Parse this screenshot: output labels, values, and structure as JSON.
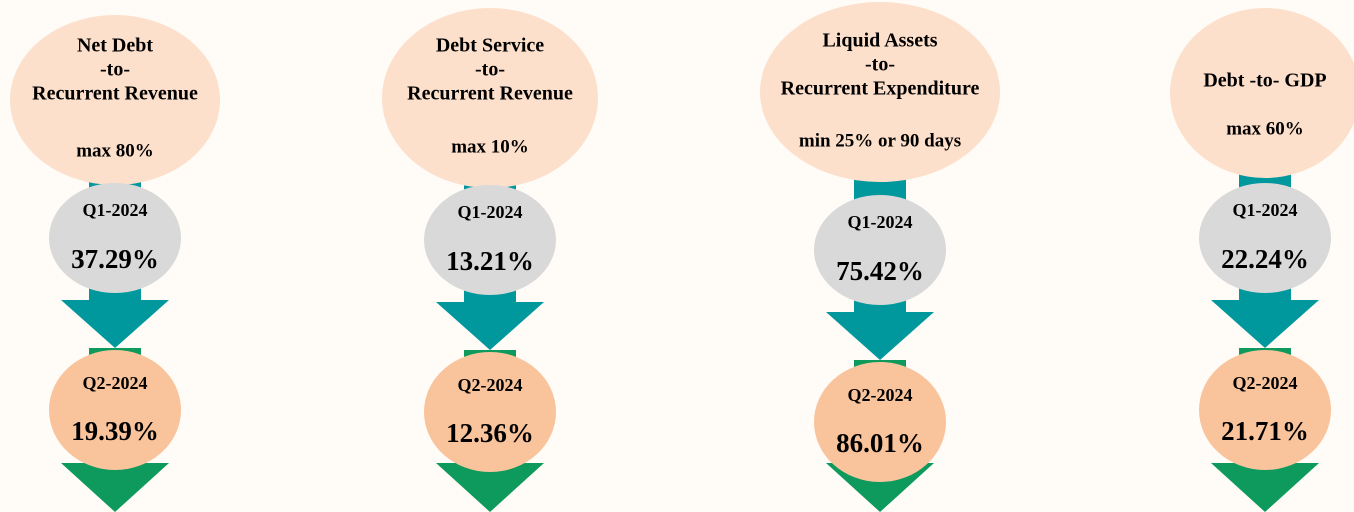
{
  "columns": [
    {
      "title": [
        "Net Debt",
        "-to-",
        "Recurrent Revenue"
      ],
      "limit": "max 80%",
      "q1": {
        "label": "Q1-2024",
        "value": "37.29%"
      },
      "q2": {
        "label": "Q2-2024",
        "value": "19.39%"
      }
    },
    {
      "title": [
        "Debt Service",
        "-to-",
        "Recurrent Revenue"
      ],
      "limit": "max 10%",
      "q1": {
        "label": "Q1-2024",
        "value": "13.21%"
      },
      "q2": {
        "label": "Q2-2024",
        "value": "12.36%"
      }
    },
    {
      "title": [
        "Liquid Assets",
        "-to-",
        "Recurrent Expenditure"
      ],
      "limit": "min 25% or 90 days",
      "q1": {
        "label": "Q1-2024",
        "value": "75.42%"
      },
      "q2": {
        "label": "Q2-2024",
        "value": "86.01%"
      }
    },
    {
      "title": [
        "Debt -to- GDP"
      ],
      "limit": "max 60%",
      "q1": {
        "label": "Q1-2024",
        "value": "22.24%"
      },
      "q2": {
        "label": "Q2-2024",
        "value": "21.71%"
      }
    }
  ]
}
